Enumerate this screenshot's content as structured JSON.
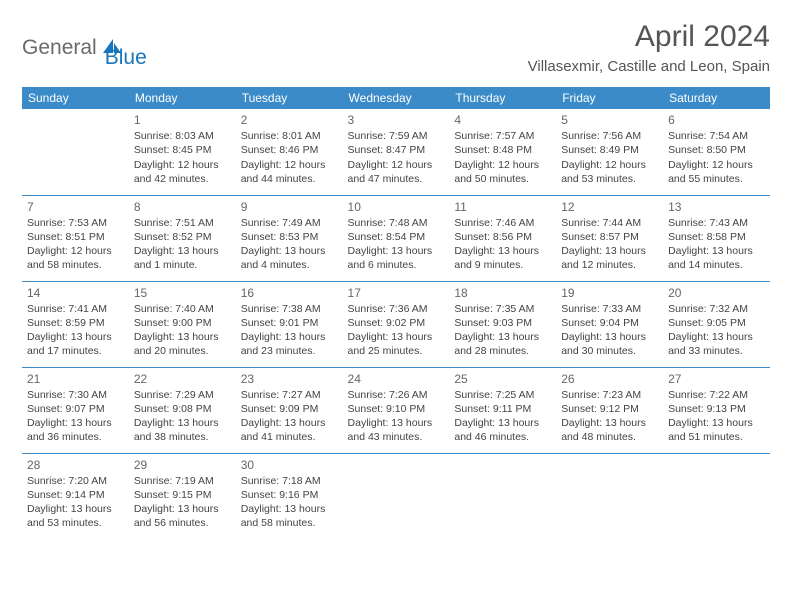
{
  "logo": {
    "text1": "General",
    "text2": "Blue"
  },
  "title": "April 2024",
  "location": "Villasexmir, Castille and Leon, Spain",
  "colors": {
    "header_bg": "#3b8bc9",
    "header_text": "#ffffff",
    "rule": "#3b8bc9",
    "logo_grey": "#6a6a6a",
    "logo_blue": "#1b75bb",
    "body_text": "#444444"
  },
  "weekdays": [
    "Sunday",
    "Monday",
    "Tuesday",
    "Wednesday",
    "Thursday",
    "Friday",
    "Saturday"
  ],
  "days": [
    {
      "n": 1,
      "sr": "Sunrise: 8:03 AM",
      "ss": "Sunset: 8:45 PM",
      "dl1": "Daylight: 12 hours",
      "dl2": "and 42 minutes."
    },
    {
      "n": 2,
      "sr": "Sunrise: 8:01 AM",
      "ss": "Sunset: 8:46 PM",
      "dl1": "Daylight: 12 hours",
      "dl2": "and 44 minutes."
    },
    {
      "n": 3,
      "sr": "Sunrise: 7:59 AM",
      "ss": "Sunset: 8:47 PM",
      "dl1": "Daylight: 12 hours",
      "dl2": "and 47 minutes."
    },
    {
      "n": 4,
      "sr": "Sunrise: 7:57 AM",
      "ss": "Sunset: 8:48 PM",
      "dl1": "Daylight: 12 hours",
      "dl2": "and 50 minutes."
    },
    {
      "n": 5,
      "sr": "Sunrise: 7:56 AM",
      "ss": "Sunset: 8:49 PM",
      "dl1": "Daylight: 12 hours",
      "dl2": "and 53 minutes."
    },
    {
      "n": 6,
      "sr": "Sunrise: 7:54 AM",
      "ss": "Sunset: 8:50 PM",
      "dl1": "Daylight: 12 hours",
      "dl2": "and 55 minutes."
    },
    {
      "n": 7,
      "sr": "Sunrise: 7:53 AM",
      "ss": "Sunset: 8:51 PM",
      "dl1": "Daylight: 12 hours",
      "dl2": "and 58 minutes."
    },
    {
      "n": 8,
      "sr": "Sunrise: 7:51 AM",
      "ss": "Sunset: 8:52 PM",
      "dl1": "Daylight: 13 hours",
      "dl2": "and 1 minute."
    },
    {
      "n": 9,
      "sr": "Sunrise: 7:49 AM",
      "ss": "Sunset: 8:53 PM",
      "dl1": "Daylight: 13 hours",
      "dl2": "and 4 minutes."
    },
    {
      "n": 10,
      "sr": "Sunrise: 7:48 AM",
      "ss": "Sunset: 8:54 PM",
      "dl1": "Daylight: 13 hours",
      "dl2": "and 6 minutes."
    },
    {
      "n": 11,
      "sr": "Sunrise: 7:46 AM",
      "ss": "Sunset: 8:56 PM",
      "dl1": "Daylight: 13 hours",
      "dl2": "and 9 minutes."
    },
    {
      "n": 12,
      "sr": "Sunrise: 7:44 AM",
      "ss": "Sunset: 8:57 PM",
      "dl1": "Daylight: 13 hours",
      "dl2": "and 12 minutes."
    },
    {
      "n": 13,
      "sr": "Sunrise: 7:43 AM",
      "ss": "Sunset: 8:58 PM",
      "dl1": "Daylight: 13 hours",
      "dl2": "and 14 minutes."
    },
    {
      "n": 14,
      "sr": "Sunrise: 7:41 AM",
      "ss": "Sunset: 8:59 PM",
      "dl1": "Daylight: 13 hours",
      "dl2": "and 17 minutes."
    },
    {
      "n": 15,
      "sr": "Sunrise: 7:40 AM",
      "ss": "Sunset: 9:00 PM",
      "dl1": "Daylight: 13 hours",
      "dl2": "and 20 minutes."
    },
    {
      "n": 16,
      "sr": "Sunrise: 7:38 AM",
      "ss": "Sunset: 9:01 PM",
      "dl1": "Daylight: 13 hours",
      "dl2": "and 23 minutes."
    },
    {
      "n": 17,
      "sr": "Sunrise: 7:36 AM",
      "ss": "Sunset: 9:02 PM",
      "dl1": "Daylight: 13 hours",
      "dl2": "and 25 minutes."
    },
    {
      "n": 18,
      "sr": "Sunrise: 7:35 AM",
      "ss": "Sunset: 9:03 PM",
      "dl1": "Daylight: 13 hours",
      "dl2": "and 28 minutes."
    },
    {
      "n": 19,
      "sr": "Sunrise: 7:33 AM",
      "ss": "Sunset: 9:04 PM",
      "dl1": "Daylight: 13 hours",
      "dl2": "and 30 minutes."
    },
    {
      "n": 20,
      "sr": "Sunrise: 7:32 AM",
      "ss": "Sunset: 9:05 PM",
      "dl1": "Daylight: 13 hours",
      "dl2": "and 33 minutes."
    },
    {
      "n": 21,
      "sr": "Sunrise: 7:30 AM",
      "ss": "Sunset: 9:07 PM",
      "dl1": "Daylight: 13 hours",
      "dl2": "and 36 minutes."
    },
    {
      "n": 22,
      "sr": "Sunrise: 7:29 AM",
      "ss": "Sunset: 9:08 PM",
      "dl1": "Daylight: 13 hours",
      "dl2": "and 38 minutes."
    },
    {
      "n": 23,
      "sr": "Sunrise: 7:27 AM",
      "ss": "Sunset: 9:09 PM",
      "dl1": "Daylight: 13 hours",
      "dl2": "and 41 minutes."
    },
    {
      "n": 24,
      "sr": "Sunrise: 7:26 AM",
      "ss": "Sunset: 9:10 PM",
      "dl1": "Daylight: 13 hours",
      "dl2": "and 43 minutes."
    },
    {
      "n": 25,
      "sr": "Sunrise: 7:25 AM",
      "ss": "Sunset: 9:11 PM",
      "dl1": "Daylight: 13 hours",
      "dl2": "and 46 minutes."
    },
    {
      "n": 26,
      "sr": "Sunrise: 7:23 AM",
      "ss": "Sunset: 9:12 PM",
      "dl1": "Daylight: 13 hours",
      "dl2": "and 48 minutes."
    },
    {
      "n": 27,
      "sr": "Sunrise: 7:22 AM",
      "ss": "Sunset: 9:13 PM",
      "dl1": "Daylight: 13 hours",
      "dl2": "and 51 minutes."
    },
    {
      "n": 28,
      "sr": "Sunrise: 7:20 AM",
      "ss": "Sunset: 9:14 PM",
      "dl1": "Daylight: 13 hours",
      "dl2": "and 53 minutes."
    },
    {
      "n": 29,
      "sr": "Sunrise: 7:19 AM",
      "ss": "Sunset: 9:15 PM",
      "dl1": "Daylight: 13 hours",
      "dl2": "and 56 minutes."
    },
    {
      "n": 30,
      "sr": "Sunrise: 7:18 AM",
      "ss": "Sunset: 9:16 PM",
      "dl1": "Daylight: 13 hours",
      "dl2": "and 58 minutes."
    }
  ],
  "start_weekday": 1,
  "layout": {
    "columns": 7,
    "rows": 5
  }
}
